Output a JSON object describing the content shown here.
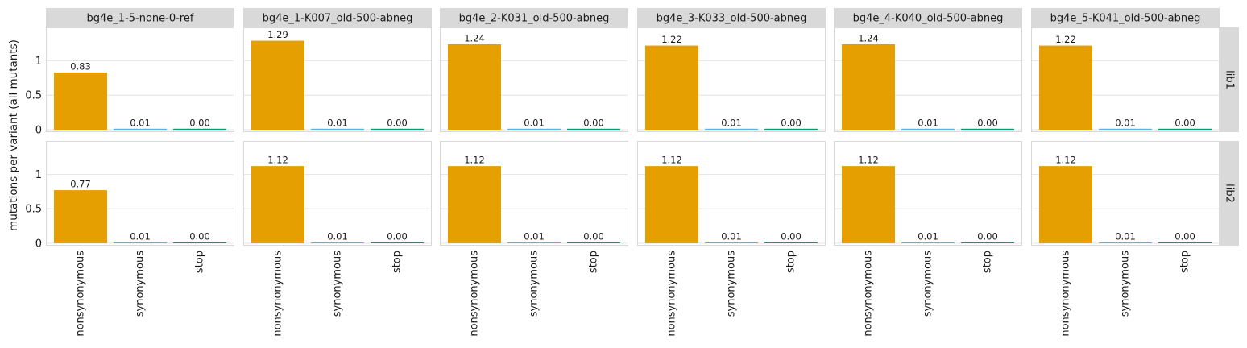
{
  "chart_data": {
    "type": "bar",
    "ylabel": "mutations per variant (all mutants)",
    "xlabel": "",
    "categories": [
      "nonsynonymous",
      "synonymous",
      "stop"
    ],
    "category_colors": [
      "#e69f00",
      "#56b4e9",
      "#009e73"
    ],
    "ylim": [
      0,
      1.5
    ],
    "yticks": [
      0,
      0.5,
      1
    ],
    "ytick_labels": [
      "0",
      "0.5",
      "1"
    ],
    "grid": true,
    "column_facets": [
      "bg4e_1-5-none-0-ref",
      "bg4e_1-K007_old-500-abneg",
      "bg4e_2-K031_old-500-abneg",
      "bg4e_3-K033_old-500-abneg",
      "bg4e_4-K040_old-500-abneg",
      "bg4e_5-K041_old-500-abneg"
    ],
    "row_facets": [
      "lib1",
      "lib2"
    ],
    "values": [
      [
        [
          0.83,
          0.01,
          0.0
        ],
        [
          1.29,
          0.01,
          0.0
        ],
        [
          1.24,
          0.01,
          0.0
        ],
        [
          1.22,
          0.01,
          0.0
        ],
        [
          1.24,
          0.01,
          0.0
        ],
        [
          1.22,
          0.01,
          0.0
        ]
      ],
      [
        [
          0.77,
          0.01,
          0.0
        ],
        [
          1.12,
          0.01,
          0.0
        ],
        [
          1.12,
          0.01,
          0.0
        ],
        [
          1.12,
          0.01,
          0.0
        ],
        [
          1.12,
          0.01,
          0.0
        ],
        [
          1.12,
          0.01,
          0.0
        ]
      ]
    ],
    "value_labels": [
      [
        [
          "0.83",
          "0.01",
          "0.00"
        ],
        [
          "1.29",
          "0.01",
          "0.00"
        ],
        [
          "1.24",
          "0.01",
          "0.00"
        ],
        [
          "1.22",
          "0.01",
          "0.00"
        ],
        [
          "1.24",
          "0.01",
          "0.00"
        ],
        [
          "1.22",
          "0.01",
          "0.00"
        ]
      ],
      [
        [
          "0.77",
          "0.01",
          "0.00"
        ],
        [
          "1.12",
          "0.01",
          "0.00"
        ],
        [
          "1.12",
          "0.01",
          "0.00"
        ],
        [
          "1.12",
          "0.01",
          "0.00"
        ],
        [
          "1.12",
          "0.01",
          "0.00"
        ],
        [
          "1.12",
          "0.01",
          "0.00"
        ]
      ]
    ]
  }
}
